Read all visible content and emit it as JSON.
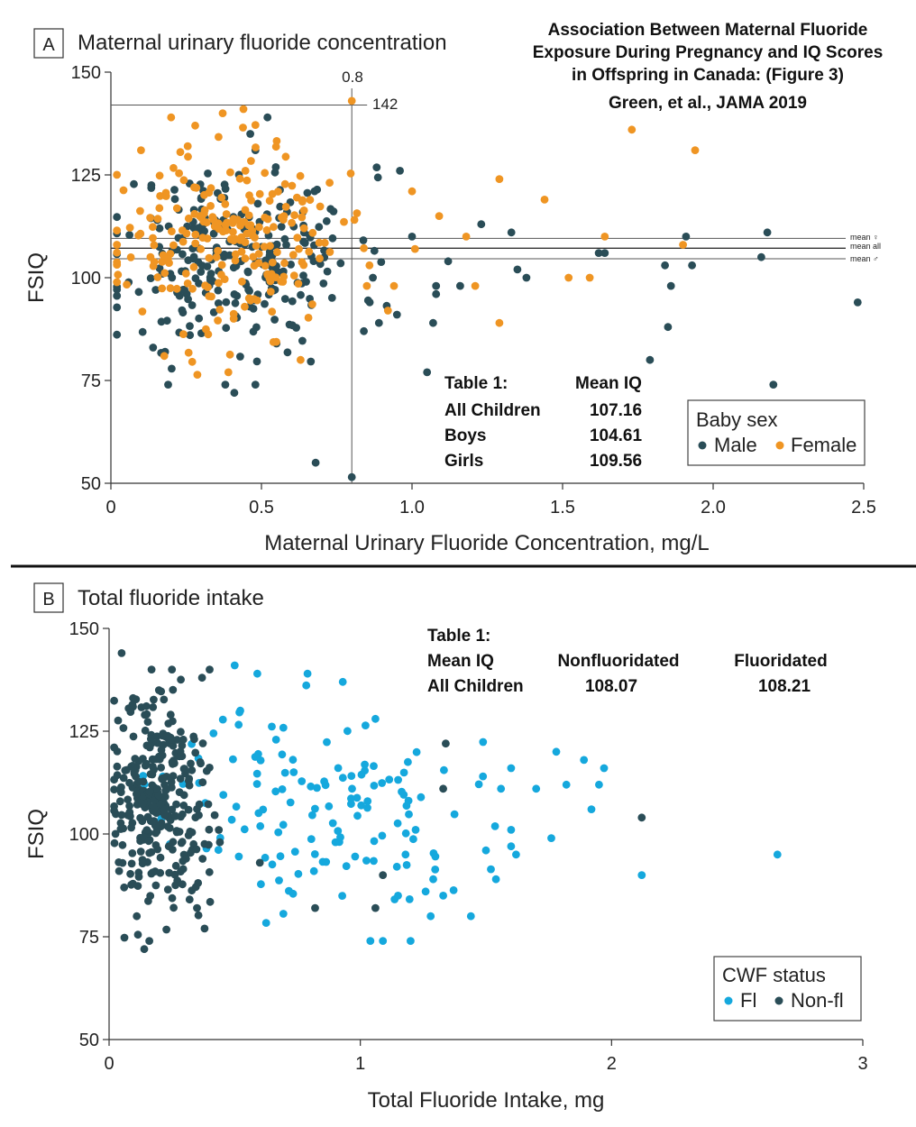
{
  "header": {
    "line1": "Association Between Maternal Fluoride",
    "line2": "Exposure During Pregnancy and IQ Scores",
    "line3": "in Offspring in Canada: (Figure 3)",
    "line4": "Green, et al.,  JAMA 2019"
  },
  "panelA": {
    "tag": "A",
    "title": "Maternal urinary fluoride concentration",
    "ref_x_label": "0.8",
    "ref_y_label": "142",
    "mean_labels": [
      "mean ♀",
      "mean all",
      "mean ♂"
    ],
    "table": {
      "title": "Table 1:",
      "col_header": "Mean IQ",
      "rows": [
        {
          "label": "All Children",
          "value": "107.16"
        },
        {
          "label": "Boys",
          "value": "104.61"
        },
        {
          "label": "Girls",
          "value": "109.56"
        }
      ]
    },
    "legend": {
      "title": "Baby sex",
      "items": [
        "Male",
        "Female"
      ]
    }
  },
  "panelB": {
    "tag": "B",
    "title": "Total fluoride intake",
    "table": {
      "title": "Table 1:",
      "row_label_header": "Mean IQ",
      "row_label": "All Children",
      "col1_header": "Nonfluoridated",
      "col1_value": "108.07",
      "col2_header": "Fluoridated",
      "col2_value": "108.21"
    },
    "legend": {
      "title": "CWF status",
      "items": [
        "Fl",
        "Non-fl"
      ]
    }
  },
  "colors": {
    "male": "#2a4d57",
    "female": "#ef9523",
    "fl": "#15a8dd",
    "nonfl": "#2a4d57",
    "axis": "#333333"
  },
  "chart_data": [
    {
      "type": "scatter",
      "title": "Maternal urinary fluoride concentration",
      "xlabel": "Maternal Urinary Fluoride Concentration, mg/L",
      "ylabel": "FSIQ",
      "xlim": [
        0,
        2.5
      ],
      "ylim": [
        50,
        150
      ],
      "xticks": [
        0,
        0.5,
        1.0,
        1.5,
        2.0,
        2.5
      ],
      "xtick_labels": [
        "0",
        "0.5",
        "1.0",
        "1.5",
        "2.0",
        "2.5"
      ],
      "yticks": [
        50,
        75,
        100,
        125,
        150
      ],
      "ref_lines": {
        "x": 0.8,
        "y": 142,
        "mean_girls": 109.56,
        "mean_all": 107.16,
        "mean_boys": 104.61
      },
      "series": [
        {
          "name": "Male",
          "seed": 11,
          "n": 250,
          "x_center": 0.42,
          "x_spread": 0.2,
          "y_center": 105,
          "y_spread": 11,
          "points": [
            [
              0.8,
              51.5
            ],
            [
              0.68,
              55
            ],
            [
              2.2,
              74
            ],
            [
              2.48,
              94
            ],
            [
              1.79,
              80
            ],
            [
              1.05,
              77
            ],
            [
              1.85,
              88
            ],
            [
              1.86,
              98
            ],
            [
              1.84,
              103
            ],
            [
              1.93,
              103
            ],
            [
              2.16,
              105
            ],
            [
              2.18,
              111
            ],
            [
              1.91,
              110
            ],
            [
              1.64,
              106
            ],
            [
              1.62,
              106
            ],
            [
              1.33,
              111
            ],
            [
              1.23,
              113
            ],
            [
              1.0,
              110
            ],
            [
              0.96,
              126
            ],
            [
              1.08,
              98
            ],
            [
              1.12,
              104
            ],
            [
              1.08,
              96
            ],
            [
              1.07,
              89
            ],
            [
              1.16,
              98
            ],
            [
              1.35,
              102
            ],
            [
              1.38,
              100
            ],
            [
              0.87,
              100
            ],
            [
              0.84,
              87
            ],
            [
              0.89,
              89
            ],
            [
              0.95,
              91
            ],
            [
              0.41,
              72
            ],
            [
              0.19,
              74
            ],
            [
              0.48,
              74
            ],
            [
              0.38,
              74
            ],
            [
              0.52,
              139
            ],
            [
              0.48,
              131
            ],
            [
              0.14,
              83
            ],
            [
              0.18,
              82
            ],
            [
              0.55,
              84
            ]
          ]
        },
        {
          "name": "Female",
          "seed": 23,
          "n": 230,
          "x_center": 0.38,
          "x_spread": 0.19,
          "y_center": 109,
          "y_spread": 11,
          "points": [
            [
              0.8,
              143
            ],
            [
              1.73,
              136
            ],
            [
              1.94,
              131
            ],
            [
              1.29,
              124
            ],
            [
              1.44,
              119
            ],
            [
              1.52,
              100
            ],
            [
              1.29,
              89
            ],
            [
              1.21,
              98
            ],
            [
              1.18,
              110
            ],
            [
              1.09,
              115
            ],
            [
              1.0,
              121
            ],
            [
              1.01,
              107
            ],
            [
              0.85,
              98
            ],
            [
              0.92,
              92
            ],
            [
              0.94,
              98
            ],
            [
              0.39,
              77
            ],
            [
              0.63,
              80
            ],
            [
              0.44,
              141
            ],
            [
              0.2,
              139
            ],
            [
              0.28,
              137
            ],
            [
              0.1,
              131
            ],
            [
              1.64,
              110
            ],
            [
              1.59,
              100
            ],
            [
              1.9,
              108
            ]
          ]
        }
      ]
    },
    {
      "type": "scatter",
      "title": "Total fluoride intake",
      "xlabel": "Total Fluoride Intake, mg",
      "ylabel": "FSIQ",
      "xlim": [
        0,
        3
      ],
      "ylim": [
        50,
        150
      ],
      "xticks": [
        0,
        1,
        2,
        3
      ],
      "xtick_labels": [
        "0",
        "1",
        "2",
        "3"
      ],
      "yticks": [
        50,
        75,
        100,
        125,
        150
      ],
      "series": [
        {
          "name": "Fl",
          "seed": 37,
          "n": 130,
          "x_center": 0.85,
          "x_spread": 0.3,
          "y_center": 107,
          "y_spread": 12,
          "points": [
            [
              2.66,
              95
            ],
            [
              2.12,
              90
            ],
            [
              1.95,
              112
            ],
            [
              1.92,
              106
            ],
            [
              1.89,
              118
            ],
            [
              1.97,
              116
            ],
            [
              1.82,
              112
            ],
            [
              1.78,
              120
            ],
            [
              1.7,
              111
            ],
            [
              1.76,
              99
            ],
            [
              1.6,
              101
            ],
            [
              1.62,
              95
            ],
            [
              1.6,
              97
            ],
            [
              1.54,
              89
            ],
            [
              1.5,
              96
            ],
            [
              1.44,
              80
            ],
            [
              1.33,
              85
            ],
            [
              1.28,
              80
            ],
            [
              1.2,
              74
            ],
            [
              1.09,
              74
            ],
            [
              1.04,
              74
            ],
            [
              1.15,
              85
            ],
            [
              1.18,
              95
            ],
            [
              1.22,
              101
            ],
            [
              1.26,
              86
            ],
            [
              1.29,
              89
            ],
            [
              0.5,
              141
            ],
            [
              0.59,
              139
            ],
            [
              0.79,
              139
            ],
            [
              0.93,
              137
            ],
            [
              1.06,
              128
            ],
            [
              1.56,
              111
            ],
            [
              1.6,
              116
            ]
          ]
        },
        {
          "name": "Non-fl",
          "seed": 51,
          "n": 300,
          "x_center": 0.2,
          "x_spread": 0.1,
          "y_center": 107,
          "y_spread": 13,
          "points": [
            [
              0.05,
              144
            ],
            [
              0.14,
              72
            ],
            [
              0.16,
              74
            ],
            [
              0.4,
              140
            ],
            [
              0.25,
              140
            ],
            [
              0.37,
              138
            ],
            [
              2.12,
              104
            ],
            [
              1.33,
              111
            ],
            [
              1.34,
              122
            ],
            [
              1.06,
              82
            ],
            [
              1.09,
              90
            ],
            [
              0.82,
              82
            ],
            [
              0.6,
              93
            ],
            [
              0.38,
              77
            ],
            [
              0.35,
              82
            ],
            [
              0.06,
              87
            ],
            [
              0.11,
              80
            ]
          ]
        }
      ]
    }
  ]
}
